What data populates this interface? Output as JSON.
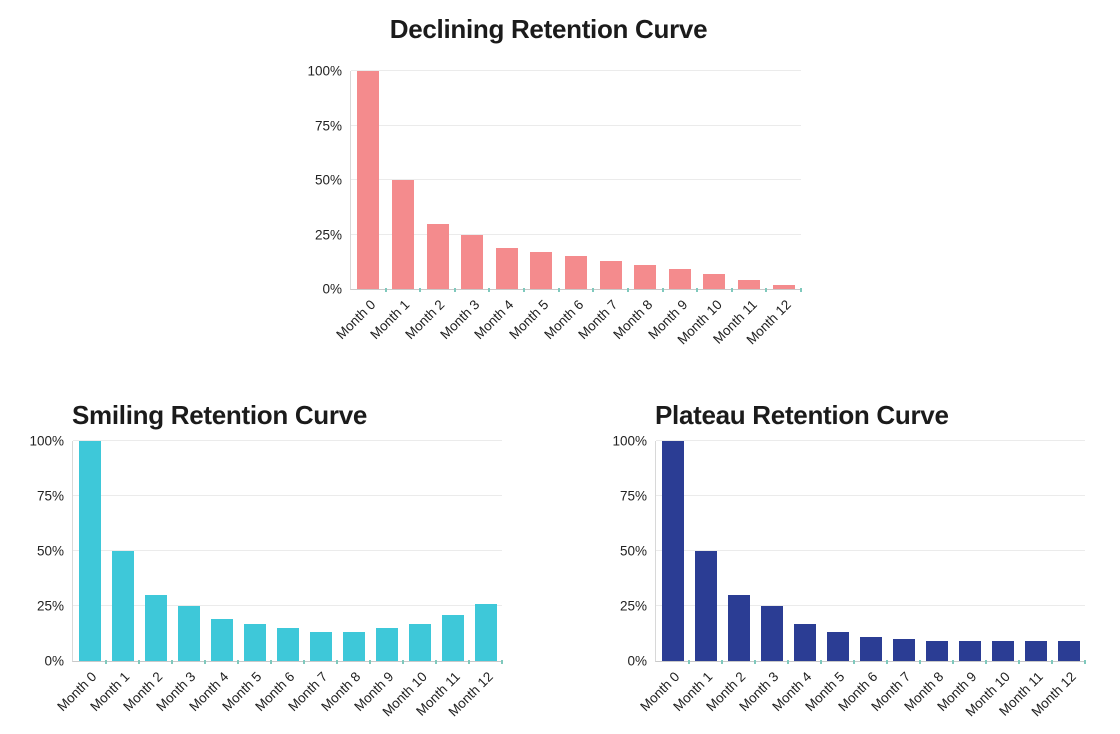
{
  "theme": {
    "background": "#ffffff",
    "title_color": "#1b1b1b",
    "tick_label_color": "#222222",
    "gridline_color": "#ebebeb",
    "y_axis_line_color": "#d8d8d8",
    "x_axis_line_color": "#c9c9c9",
    "axis_tick_mark_color": "#7fc9bd"
  },
  "y_axis": {
    "ticks": [
      {
        "label": "0%",
        "value": 0
      },
      {
        "label": "25%",
        "value": 25
      },
      {
        "label": "50%",
        "value": 50
      },
      {
        "label": "75%",
        "value": 75
      },
      {
        "label": "100%",
        "value": 100
      }
    ]
  },
  "chart_data": [
    {
      "type": "bar",
      "title": "Declining Retention Curve",
      "categories": [
        "Month 0",
        "Month 1",
        "Month 2",
        "Month 3",
        "Month 4",
        "Month 5",
        "Month 6",
        "Month 7",
        "Month 8",
        "Month 9",
        "Month 10",
        "Month 11",
        "Month 12"
      ],
      "values": [
        100,
        50,
        30,
        25,
        19,
        17,
        15,
        13,
        11,
        9,
        7,
        4,
        2
      ],
      "bar_color": "#F48B8D",
      "xlabel": "",
      "ylabel": "",
      "ylim": [
        0,
        100
      ],
      "grid": true,
      "legend": "none",
      "x_tick_rotation_deg": -45
    },
    {
      "type": "bar",
      "title": "Smiling Retention Curve",
      "categories": [
        "Month 0",
        "Month 1",
        "Month 2",
        "Month 3",
        "Month 4",
        "Month 5",
        "Month 6",
        "Month 7",
        "Month 8",
        "Month 9",
        "Month 10",
        "Month 11",
        "Month 12"
      ],
      "values": [
        100,
        50,
        30,
        25,
        19,
        17,
        15,
        13,
        13,
        15,
        17,
        21,
        26
      ],
      "bar_color": "#3EC8D9",
      "xlabel": "",
      "ylabel": "",
      "ylim": [
        0,
        100
      ],
      "grid": true,
      "legend": "none",
      "x_tick_rotation_deg": -45
    },
    {
      "type": "bar",
      "title": "Plateau Retention Curve",
      "categories": [
        "Month 0",
        "Month 1",
        "Month 2",
        "Month 3",
        "Month 4",
        "Month 5",
        "Month 6",
        "Month 7",
        "Month 8",
        "Month 9",
        "Month 10",
        "Month 11",
        "Month 12"
      ],
      "values": [
        100,
        50,
        30,
        25,
        17,
        13,
        11,
        10,
        9,
        9,
        9,
        9,
        9
      ],
      "bar_color": "#2B3D94",
      "xlabel": "",
      "ylabel": "",
      "ylim": [
        0,
        100
      ],
      "grid": true,
      "legend": "none",
      "x_tick_rotation_deg": -45
    }
  ]
}
